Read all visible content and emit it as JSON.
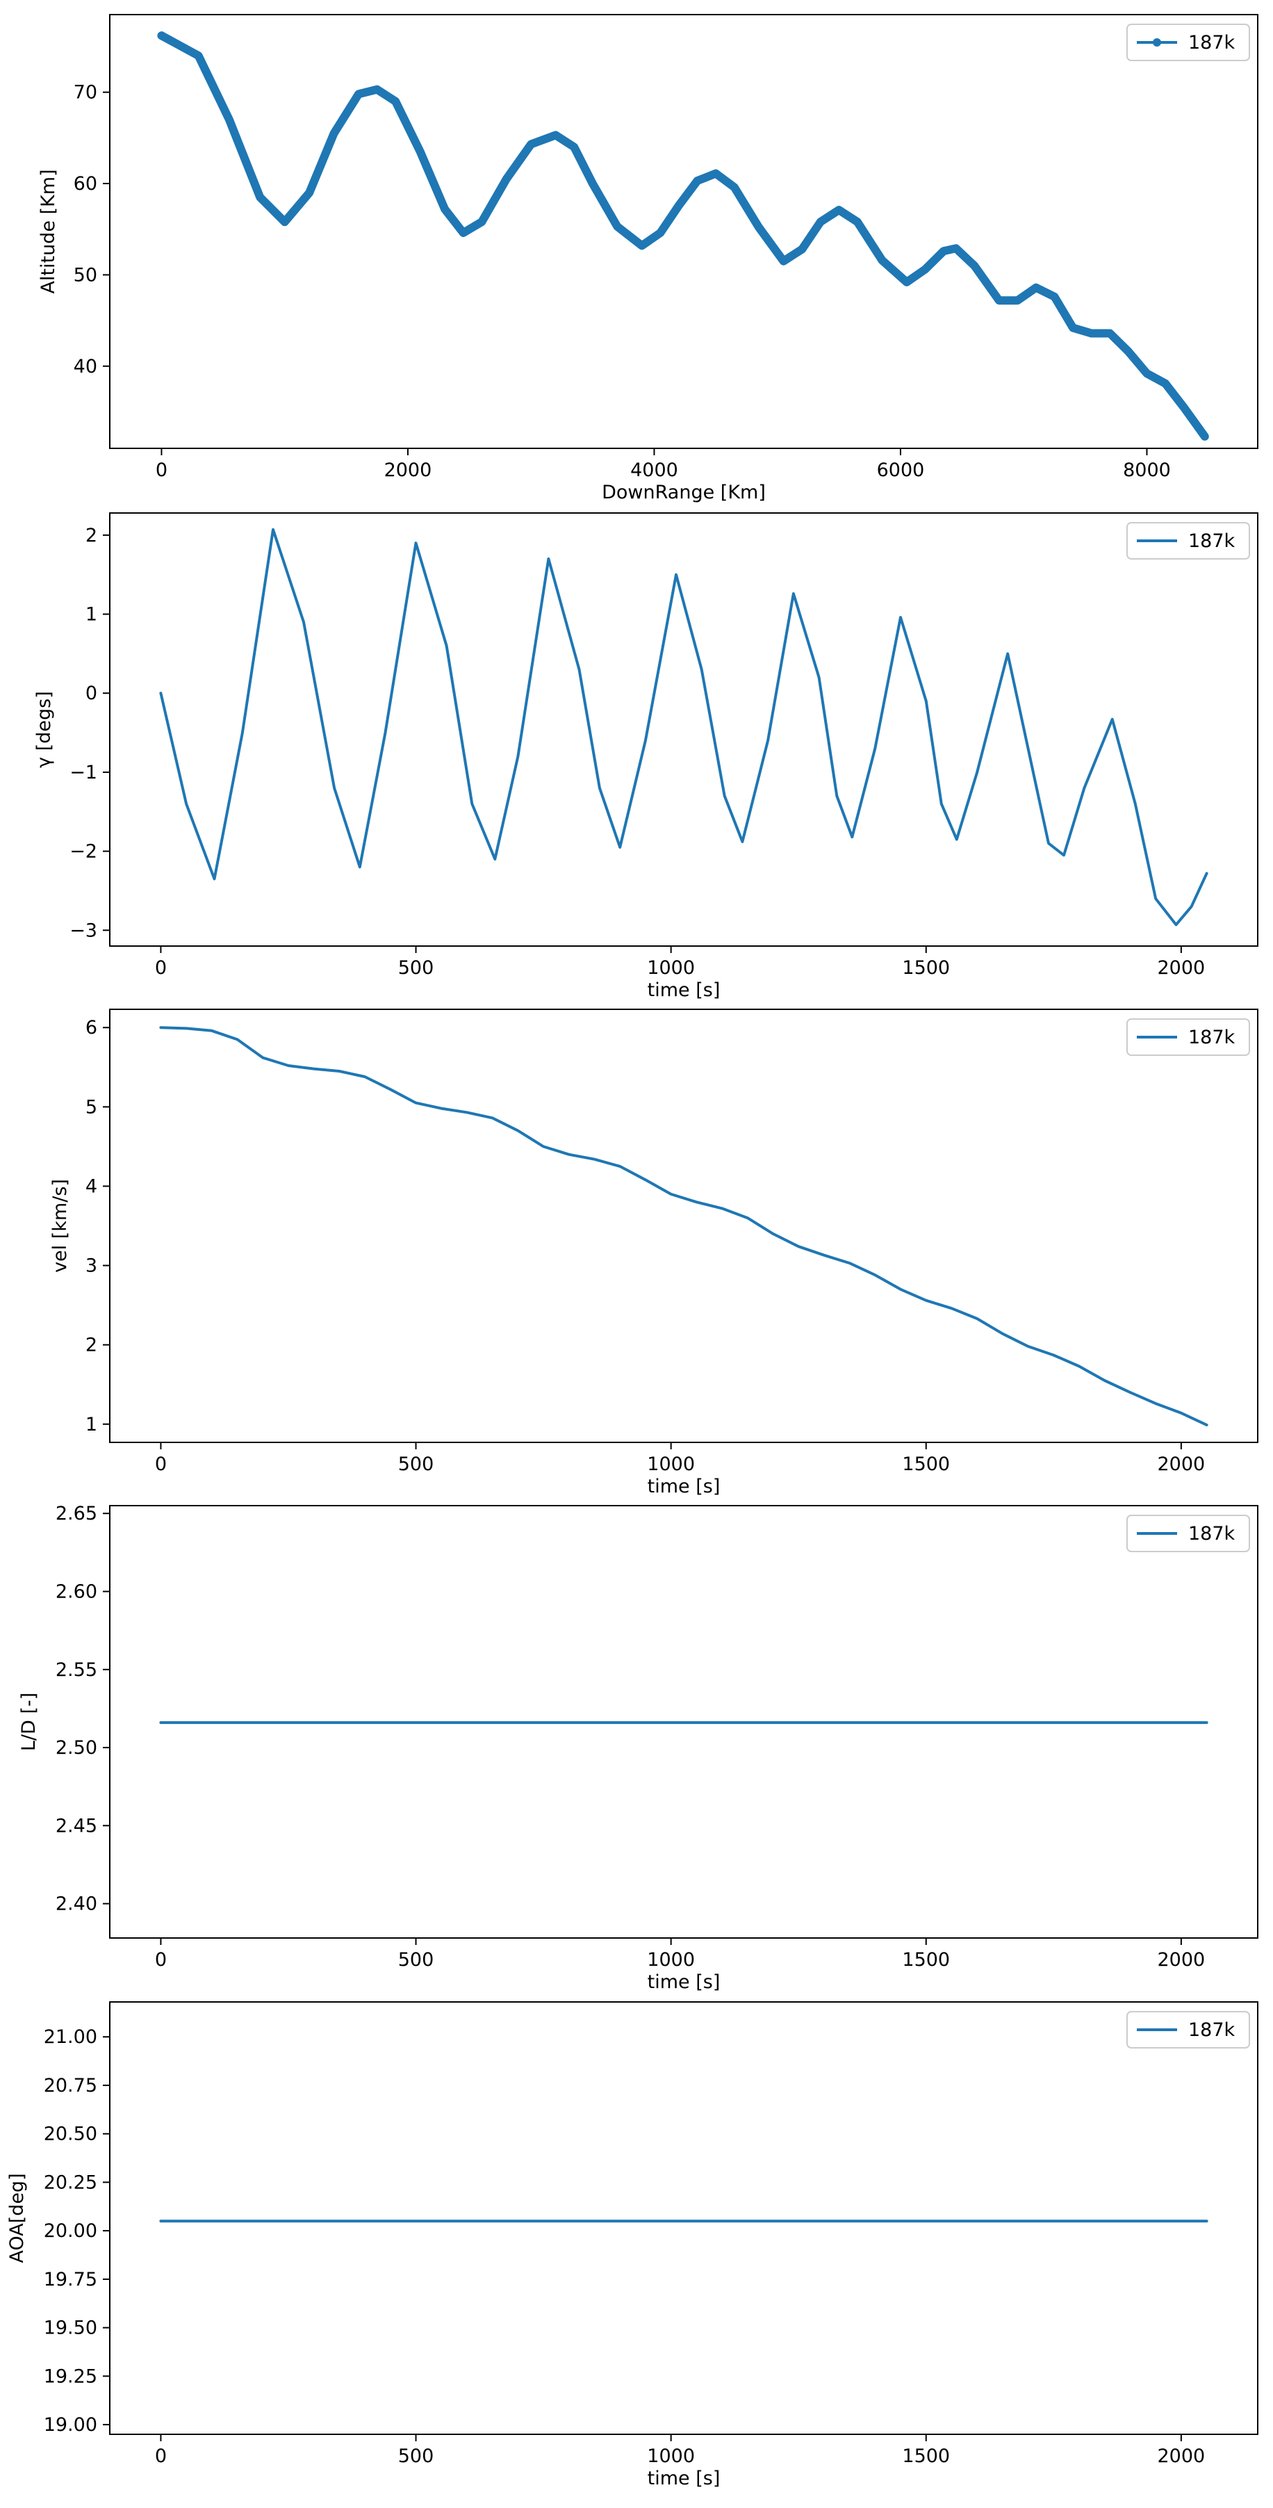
{
  "colors": {
    "line": "#1f77b4",
    "axes": "#000000",
    "legend_frame": "#cccccc",
    "background": "#ffffff"
  },
  "chart_data": [
    {
      "type": "line",
      "xlabel": "DownRange [Km]",
      "ylabel": "Altitude [Km]",
      "xlim": [
        -420,
        8900
      ],
      "ylim": [
        31,
        78.5
      ],
      "xticks": [
        0,
        2000,
        4000,
        6000,
        8000
      ],
      "yticks": [
        40,
        50,
        60,
        70
      ],
      "grid": false,
      "legend": "top-right",
      "marker": "dot",
      "series": [
        {
          "name": "187k",
          "x": [
            0,
            300,
            550,
            800,
            1000,
            1200,
            1400,
            1600,
            1750,
            1900,
            2100,
            2300,
            2450,
            2600,
            2800,
            3000,
            3200,
            3350,
            3500,
            3700,
            3900,
            4050,
            4200,
            4350,
            4500,
            4650,
            4850,
            5050,
            5200,
            5350,
            5500,
            5650,
            5850,
            6050,
            6200,
            6350,
            6450,
            6600,
            6800,
            6950,
            7100,
            7250,
            7400,
            7550,
            7700,
            7850,
            8000,
            8150,
            8300,
            8470
          ],
          "y": [
            76.2,
            74.0,
            67.0,
            58.5,
            55.8,
            59.0,
            65.5,
            69.8,
            70.3,
            69.0,
            63.5,
            57.2,
            54.6,
            55.8,
            60.5,
            64.3,
            65.3,
            64.0,
            60.0,
            55.3,
            53.2,
            54.6,
            57.6,
            60.3,
            61.1,
            59.6,
            55.2,
            51.5,
            52.8,
            55.8,
            57.1,
            55.8,
            51.6,
            49.2,
            50.6,
            52.6,
            52.9,
            51.0,
            47.2,
            47.2,
            48.6,
            47.6,
            44.2,
            43.6,
            43.6,
            41.6,
            39.2,
            38.1,
            35.5,
            32.3
          ]
        }
      ]
    },
    {
      "type": "line",
      "xlabel": "time [s]",
      "ylabel": "γ [degs]",
      "xlim": [
        -100,
        2150
      ],
      "ylim": [
        -3.2,
        2.28
      ],
      "xticks": [
        0,
        500,
        1000,
        1500,
        2000
      ],
      "yticks": [
        -3,
        -2,
        -1,
        0,
        1,
        2
      ],
      "grid": false,
      "legend": "top-right",
      "marker": "none",
      "series": [
        {
          "name": "187k",
          "x": [
            0,
            50,
            105,
            160,
            220,
            280,
            340,
            390,
            440,
            500,
            560,
            610,
            655,
            700,
            760,
            820,
            860,
            900,
            950,
            1010,
            1060,
            1105,
            1140,
            1190,
            1240,
            1290,
            1325,
            1355,
            1400,
            1450,
            1500,
            1530,
            1560,
            1600,
            1660,
            1710,
            1740,
            1770,
            1810,
            1865,
            1910,
            1950,
            1990,
            2020,
            2050
          ],
          "y": [
            0.0,
            -1.4,
            -2.35,
            -0.5,
            2.07,
            0.9,
            -1.2,
            -2.2,
            -0.5,
            1.9,
            0.6,
            -1.4,
            -2.1,
            -0.8,
            1.7,
            0.3,
            -1.2,
            -1.95,
            -0.6,
            1.5,
            0.3,
            -1.3,
            -1.88,
            -0.6,
            1.26,
            0.2,
            -1.3,
            -1.82,
            -0.7,
            0.96,
            -0.1,
            -1.4,
            -1.85,
            -1.0,
            0.5,
            -1.0,
            -1.9,
            -2.05,
            -1.2,
            -0.33,
            -1.4,
            -2.6,
            -2.93,
            -2.7,
            -2.28
          ]
        }
      ]
    },
    {
      "type": "line",
      "xlabel": "time [s]",
      "ylabel": "vel [km/s]",
      "xlim": [
        -100,
        2150
      ],
      "ylim": [
        0.77,
        6.23
      ],
      "xticks": [
        0,
        500,
        1000,
        1500,
        2000
      ],
      "yticks": [
        1,
        2,
        3,
        4,
        5,
        6
      ],
      "grid": false,
      "legend": "top-right",
      "marker": "none",
      "series": [
        {
          "name": "187k",
          "x": [
            0,
            50,
            100,
            150,
            200,
            250,
            300,
            350,
            400,
            450,
            500,
            550,
            600,
            650,
            700,
            750,
            800,
            850,
            900,
            950,
            1000,
            1050,
            1100,
            1150,
            1200,
            1250,
            1300,
            1350,
            1400,
            1450,
            1500,
            1550,
            1600,
            1650,
            1700,
            1750,
            1800,
            1850,
            1900,
            1950,
            2000,
            2050
          ],
          "y": [
            6.0,
            5.99,
            5.96,
            5.85,
            5.62,
            5.52,
            5.48,
            5.45,
            5.38,
            5.22,
            5.05,
            4.98,
            4.93,
            4.86,
            4.7,
            4.5,
            4.4,
            4.34,
            4.25,
            4.08,
            3.9,
            3.8,
            3.72,
            3.6,
            3.4,
            3.24,
            3.13,
            3.03,
            2.88,
            2.7,
            2.56,
            2.46,
            2.33,
            2.14,
            1.98,
            1.87,
            1.73,
            1.55,
            1.4,
            1.26,
            1.14,
            0.99
          ]
        }
      ]
    },
    {
      "type": "line",
      "xlabel": "time [s]",
      "ylabel": "L/D [-]",
      "xlim": [
        -100,
        2150
      ],
      "ylim": [
        2.378,
        2.655
      ],
      "xticks": [
        0,
        500,
        1000,
        1500,
        2000
      ],
      "yticks": [
        "2.40",
        "2.45",
        "2.50",
        "2.55",
        "2.60",
        "2.65"
      ],
      "ytick_values": [
        2.4,
        2.45,
        2.5,
        2.55,
        2.6,
        2.65
      ],
      "grid": false,
      "legend": "top-right",
      "marker": "none",
      "series": [
        {
          "name": "187k",
          "x": [
            0,
            2050
          ],
          "y": [
            2.516,
            2.516
          ]
        }
      ]
    },
    {
      "type": "line",
      "xlabel": "time [s]",
      "ylabel": "AOA[deg]",
      "xlim": [
        -100,
        2150
      ],
      "ylim": [
        18.95,
        21.18
      ],
      "xticks": [
        0,
        500,
        1000,
        1500,
        2000
      ],
      "yticks": [
        "19.00",
        "19.25",
        "19.50",
        "19.75",
        "20.00",
        "20.25",
        "20.50",
        "20.75",
        "21.00"
      ],
      "ytick_values": [
        19.0,
        19.25,
        19.5,
        19.75,
        20.0,
        20.25,
        20.5,
        20.75,
        21.0
      ],
      "grid": false,
      "legend": "top-right",
      "marker": "none",
      "series": [
        {
          "name": "187k",
          "x": [
            0,
            2050
          ],
          "y": [
            20.05,
            20.05
          ]
        }
      ]
    }
  ]
}
